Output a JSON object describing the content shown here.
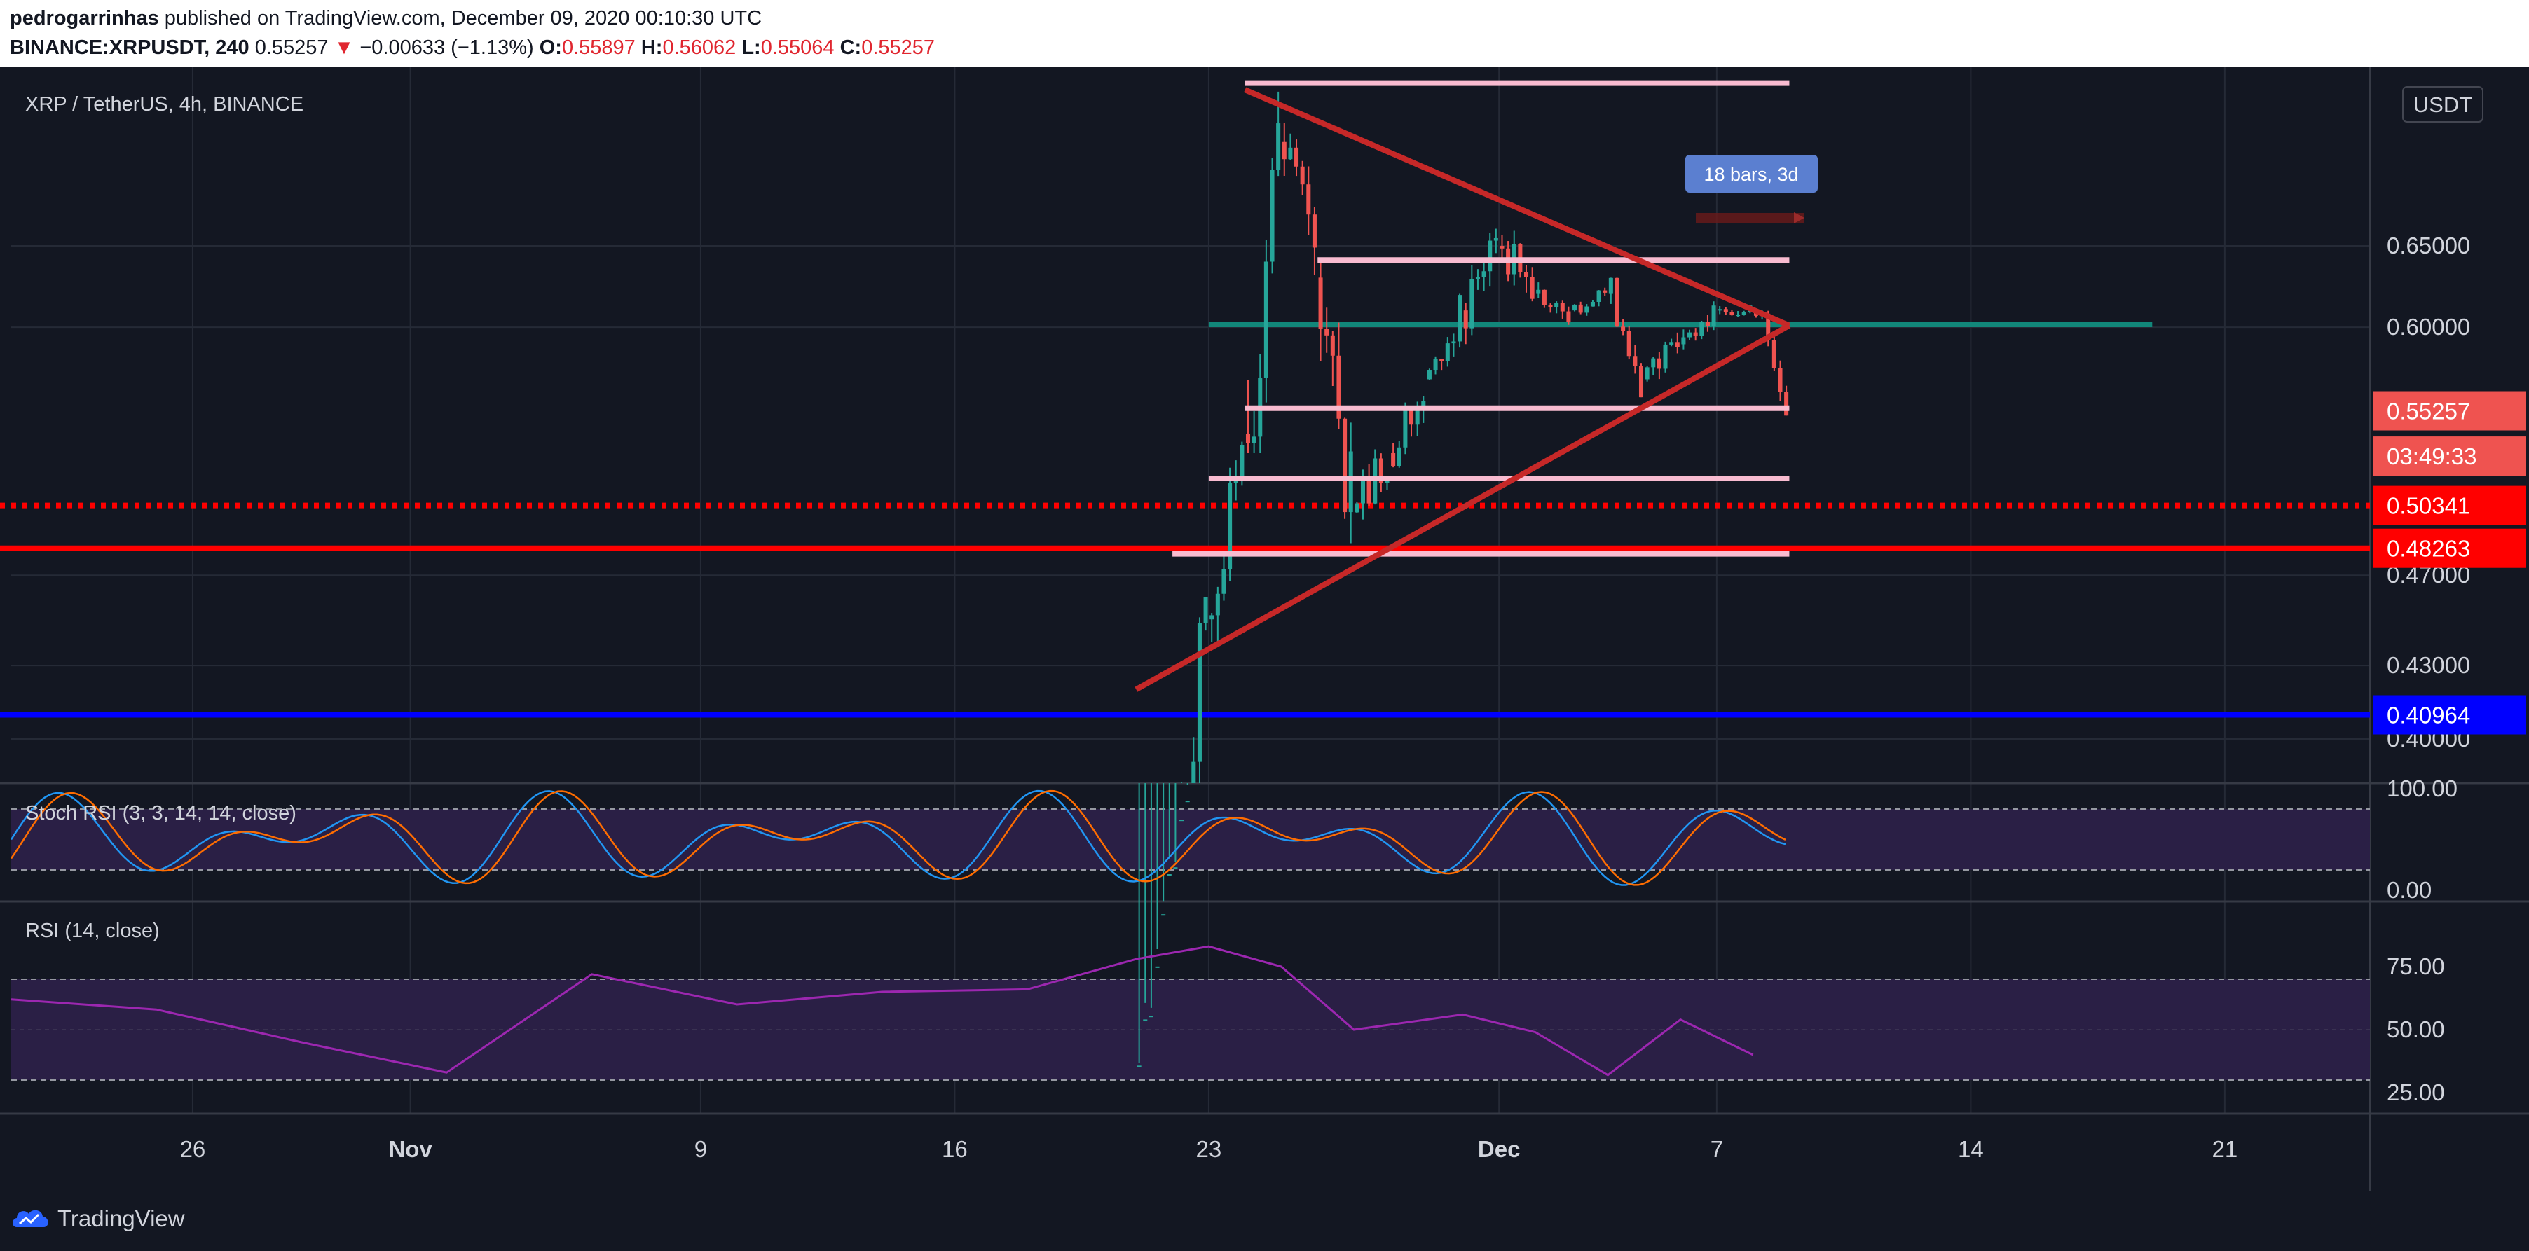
{
  "header": {
    "publisher": "pedrogarrinhas",
    "published_text": "published on TradingView.com, December 09, 2020 00:10:30 UTC",
    "symbol": "BINANCE:XRPUSDT, 240",
    "last": "0.55257",
    "arrow": "▼",
    "change": "−0.00633 (−1.13%)",
    "open_label": "O:",
    "open": "0.55897",
    "high_label": "H:",
    "high": "0.56062",
    "low_label": "L:",
    "low": "0.55064",
    "close_label": "C:",
    "close": "0.55257"
  },
  "chart_title": "XRP / TetherUS, 4h, BINANCE",
  "currency_button": "USDT",
  "measure_label": "18 bars, 3d",
  "footer": {
    "brand": "TradingView"
  },
  "colors": {
    "background": "#131722",
    "candle_up": "#26a69a",
    "candle_down": "#ef5350",
    "triangle": "#c62828",
    "pivot": "#12877a",
    "range_lines": "#f8bbd0",
    "support_dotted": "#ff0000",
    "support_solid": "#ff0000",
    "support_blue": "#0000ff",
    "stoch_k": "#2196f3",
    "stoch_d": "#ff6d00",
    "rsi": "#9c27b0",
    "oscillator_band": "#2a1f45"
  },
  "chart_data": [
    {
      "type": "candlestick",
      "symbol": "XRP / TetherUS",
      "timeframe": "4h",
      "exchange": "BINANCE",
      "x_ticks": [
        "26",
        "Nov",
        "9",
        "16",
        "23",
        "Dec",
        "7",
        "14",
        "21"
      ],
      "x_tick_dates": [
        "2020-10-26",
        "2020-11-01",
        "2020-11-09",
        "2020-11-16",
        "2020-11-23",
        "2020-12-01",
        "2020-12-07",
        "2020-12-14",
        "2020-12-21"
      ],
      "x_range": [
        "2020-10-21",
        "2020-12-25"
      ],
      "y_ticks": [
        "0.65000",
        "0.60000",
        "0.47000",
        "0.43000",
        "0.40000"
      ],
      "y_range": [
        0.37,
        0.78
      ],
      "y_scale": "log",
      "price_tags": [
        {
          "label": "0.55257",
          "value": 0.55257,
          "color": "#ef5350"
        },
        {
          "label": "03:49:33",
          "value": 0.5285,
          "color": "#ef5350"
        },
        {
          "label": "0.50341",
          "value": 0.50341,
          "color": "#ff0000"
        },
        {
          "label": "0.48263",
          "value": 0.48263,
          "color": "#ff0000"
        },
        {
          "label": "0.40964",
          "value": 0.40964,
          "color": "#0000ff"
        }
      ],
      "horizontal_lines": [
        {
          "name": "dotted-support",
          "value": 0.50341,
          "style": "dotted",
          "color": "#ff0000"
        },
        {
          "name": "solid-support",
          "value": 0.48263,
          "style": "solid",
          "color": "#ff0000"
        },
        {
          "name": "blue-support",
          "value": 0.40964,
          "style": "solid",
          "color": "#0000ff"
        },
        {
          "name": "pivot-line",
          "value": 0.6015,
          "start": "2020-11-23",
          "end": "2020-12-19",
          "color": "#12877a"
        }
      ],
      "range_lines": [
        {
          "value": 0.763,
          "start": "2020-11-24",
          "end": "2020-12-09"
        },
        {
          "value": 0.641,
          "start": "2020-11-26",
          "end": "2020-12-09"
        },
        {
          "value": 0.554,
          "start": "2020-11-24",
          "end": "2020-12-09"
        },
        {
          "value": 0.517,
          "start": "2020-11-23",
          "end": "2020-12-09"
        },
        {
          "value": 0.48,
          "start": "2020-11-22",
          "end": "2020-12-09"
        }
      ],
      "triangle": {
        "apex": {
          "date": "2020-12-09",
          "value": 0.601
        },
        "upper_start": {
          "date": "2020-11-24",
          "value": 0.758
        },
        "lower_start": {
          "date": "2020-11-21",
          "value": 0.42
        }
      },
      "candles_approx": [
        {
          "date": "2020-11-21",
          "open": 0.29,
          "high": 0.36,
          "low": 0.29,
          "close": 0.35
        },
        {
          "date": "2020-11-22",
          "open": 0.35,
          "high": 0.46,
          "low": 0.34,
          "close": 0.45
        },
        {
          "date": "2020-11-23",
          "open": 0.45,
          "high": 0.55,
          "low": 0.44,
          "close": 0.54
        },
        {
          "date": "2020-11-24",
          "open": 0.54,
          "high": 0.79,
          "low": 0.53,
          "close": 0.72
        },
        {
          "date": "2020-11-25",
          "open": 0.72,
          "high": 0.75,
          "low": 0.6,
          "close": 0.63
        },
        {
          "date": "2020-11-26",
          "open": 0.63,
          "high": 0.64,
          "low": 0.46,
          "close": 0.5
        },
        {
          "date": "2020-11-27",
          "open": 0.5,
          "high": 0.56,
          "low": 0.48,
          "close": 0.53
        },
        {
          "date": "2020-11-28",
          "open": 0.53,
          "high": 0.58,
          "low": 0.51,
          "close": 0.57
        },
        {
          "date": "2020-11-29",
          "open": 0.57,
          "high": 0.62,
          "low": 0.55,
          "close": 0.61
        },
        {
          "date": "2020-11-30",
          "open": 0.61,
          "high": 0.67,
          "low": 0.59,
          "close": 0.65
        },
        {
          "date": "2020-12-01",
          "open": 0.65,
          "high": 0.68,
          "low": 0.6,
          "close": 0.62
        },
        {
          "date": "2020-12-02",
          "open": 0.62,
          "high": 0.63,
          "low": 0.59,
          "close": 0.61
        },
        {
          "date": "2020-12-03",
          "open": 0.61,
          "high": 0.63,
          "low": 0.6,
          "close": 0.62
        },
        {
          "date": "2020-12-04",
          "open": 0.62,
          "high": 0.63,
          "low": 0.56,
          "close": 0.57
        },
        {
          "date": "2020-12-05",
          "open": 0.57,
          "high": 0.6,
          "low": 0.55,
          "close": 0.59
        },
        {
          "date": "2020-12-06",
          "open": 0.59,
          "high": 0.62,
          "low": 0.58,
          "close": 0.61
        },
        {
          "date": "2020-12-07",
          "open": 0.61,
          "high": 0.62,
          "low": 0.6,
          "close": 0.61
        },
        {
          "date": "2020-12-08",
          "open": 0.61,
          "high": 0.61,
          "low": 0.55,
          "close": 0.55
        }
      ]
    },
    {
      "type": "line",
      "title": "Stoch RSI (3, 3, 14, 14, close)",
      "y_ticks": [
        "100.00",
        "0.00"
      ],
      "y_range": [
        0,
        100
      ],
      "band": [
        20,
        80
      ],
      "series": [
        {
          "name": "K",
          "color": "#2196f3"
        },
        {
          "name": "D",
          "color": "#ff6d00"
        }
      ]
    },
    {
      "type": "line",
      "title": "RSI (14, close)",
      "y_ticks": [
        "75.00",
        "50.00",
        "25.00"
      ],
      "y_range": [
        20,
        85
      ],
      "band": [
        30,
        70
      ],
      "series": [
        {
          "name": "RSI",
          "color": "#9c27b0",
          "x": [
            "2020-10-21",
            "2020-10-25",
            "2020-10-29",
            "2020-11-02",
            "2020-11-06",
            "2020-11-10",
            "2020-11-14",
            "2020-11-18",
            "2020-11-21",
            "2020-11-23",
            "2020-11-25",
            "2020-11-27",
            "2020-11-30",
            "2020-12-02",
            "2020-12-04",
            "2020-12-06",
            "2020-12-08"
          ],
          "values": [
            62,
            58,
            45,
            33,
            72,
            60,
            65,
            66,
            78,
            83,
            75,
            50,
            56,
            49,
            32,
            54,
            40
          ]
        }
      ]
    }
  ]
}
